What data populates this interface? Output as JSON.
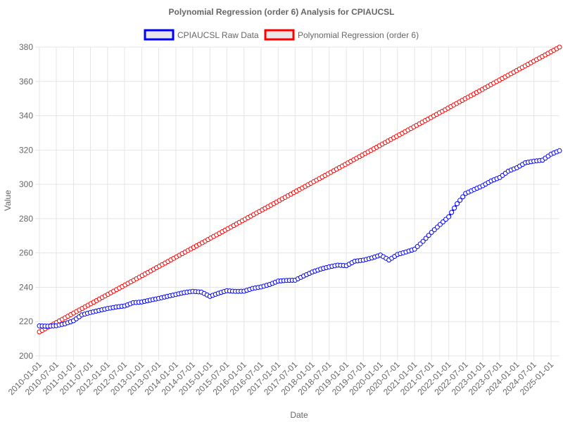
{
  "chart_data": {
    "type": "line",
    "title": "Polynomial Regression (order 6) Analysis for CPIAUCSL",
    "xlabel": "Date",
    "ylabel": "Value",
    "ylim": [
      200,
      380
    ],
    "yticks": [
      200,
      220,
      240,
      260,
      280,
      300,
      320,
      340,
      360,
      380
    ],
    "x_range": [
      "2010-01-01",
      "2025-04-01"
    ],
    "xticks": [
      "2010-01-01",
      "2010-07-01",
      "2011-01-01",
      "2011-07-01",
      "2012-01-01",
      "2012-07-01",
      "2013-01-01",
      "2013-07-01",
      "2014-01-01",
      "2014-07-01",
      "2015-01-01",
      "2015-07-01",
      "2016-01-01",
      "2016-07-01",
      "2017-01-01",
      "2017-07-01",
      "2018-01-01",
      "2018-07-01",
      "2019-01-01",
      "2019-07-01",
      "2020-01-01",
      "2020-07-01",
      "2021-01-01",
      "2021-07-01",
      "2022-01-01",
      "2022-07-01",
      "2023-01-01",
      "2023-07-01",
      "2024-01-01",
      "2024-07-01",
      "2025-01-01"
    ],
    "grid": true,
    "legend_position": "top",
    "series": [
      {
        "name": "CPIAUCSL Raw Data",
        "color": "#0000ff",
        "marker": "circle",
        "x": [
          "2010-01-01",
          "2010-04-01",
          "2010-07-01",
          "2010-10-01",
          "2011-01-01",
          "2011-04-01",
          "2011-07-01",
          "2011-10-01",
          "2012-01-01",
          "2012-04-01",
          "2012-07-01",
          "2012-10-01",
          "2013-01-01",
          "2013-04-01",
          "2013-07-01",
          "2013-10-01",
          "2014-01-01",
          "2014-04-01",
          "2014-07-01",
          "2014-10-01",
          "2015-01-01",
          "2015-04-01",
          "2015-07-01",
          "2015-10-01",
          "2016-01-01",
          "2016-04-01",
          "2016-07-01",
          "2016-10-01",
          "2017-01-01",
          "2017-04-01",
          "2017-07-01",
          "2017-10-01",
          "2018-01-01",
          "2018-04-01",
          "2018-07-01",
          "2018-10-01",
          "2019-01-01",
          "2019-04-01",
          "2019-07-01",
          "2019-10-01",
          "2020-01-01",
          "2020-04-01",
          "2020-07-01",
          "2020-10-01",
          "2021-01-01",
          "2021-04-01",
          "2021-07-01",
          "2021-10-01",
          "2022-01-01",
          "2022-04-01",
          "2022-07-01",
          "2022-10-01",
          "2023-01-01",
          "2023-04-01",
          "2023-07-01",
          "2023-10-01",
          "2024-01-01",
          "2024-04-01",
          "2024-07-01",
          "2024-10-01",
          "2025-01-01",
          "2025-04-01"
        ],
        "values": [
          217.5,
          217.3,
          217.6,
          218.7,
          220.5,
          223.9,
          225.3,
          226.5,
          227.6,
          228.5,
          229.1,
          231.0,
          231.4,
          232.5,
          233.5,
          234.7,
          235.8,
          236.9,
          237.6,
          237.2,
          234.7,
          236.5,
          238.0,
          237.6,
          237.7,
          239.3,
          240.2,
          241.6,
          243.6,
          244.0,
          244.1,
          246.6,
          248.9,
          250.6,
          251.9,
          252.9,
          252.6,
          255.2,
          255.8,
          257.1,
          258.8,
          255.9,
          259.1,
          260.6,
          262.2,
          266.8,
          272.0,
          276.6,
          281.1,
          288.7,
          294.7,
          297.0,
          299.2,
          302.0,
          304.0,
          307.7,
          309.7,
          312.6,
          313.5,
          314.1,
          317.6,
          319.6
        ]
      },
      {
        "name": "Polynomial Regression (order 6)",
        "color": "#ff0000",
        "marker": "circle",
        "x_start": "2010-01-01",
        "x_end": "2025-04-01",
        "y_start": 214,
        "y_end": 380
      }
    ]
  }
}
